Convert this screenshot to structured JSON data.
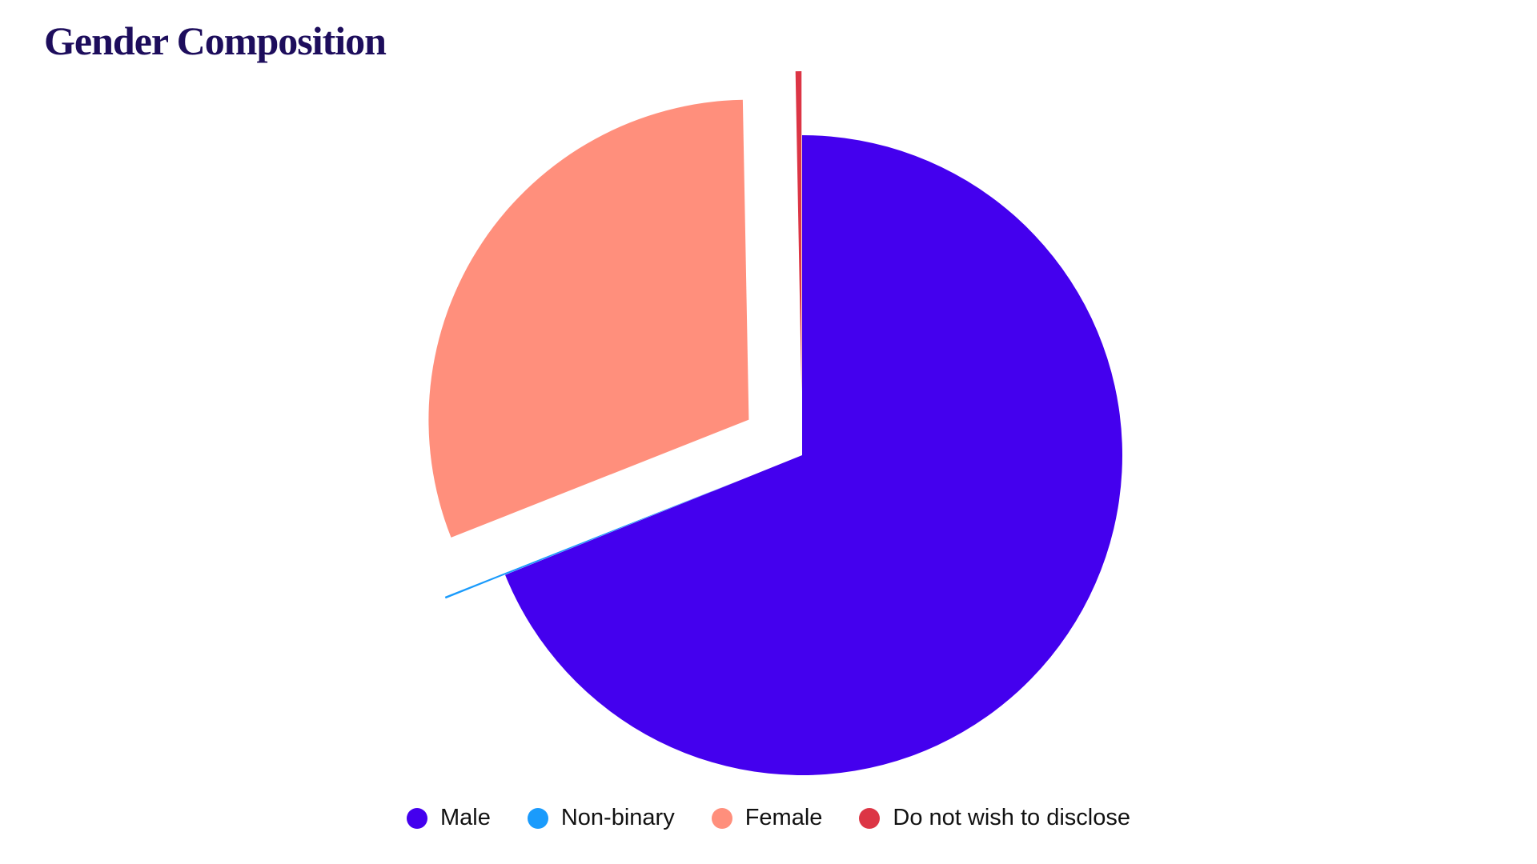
{
  "chart_data": {
    "type": "pie",
    "title": "Gender Composition",
    "categories": [
      "Male",
      "Non-binary",
      "Female",
      "Do not wish to disclose"
    ],
    "values": [
      68.9,
      0.1,
      30.7,
      0.3
    ],
    "colors": [
      "#4400ee",
      "#1a9bfc",
      "#ff8f7c",
      "#dc3545"
    ],
    "exploded": [
      false,
      true,
      true,
      true
    ],
    "legend": "bottom"
  }
}
